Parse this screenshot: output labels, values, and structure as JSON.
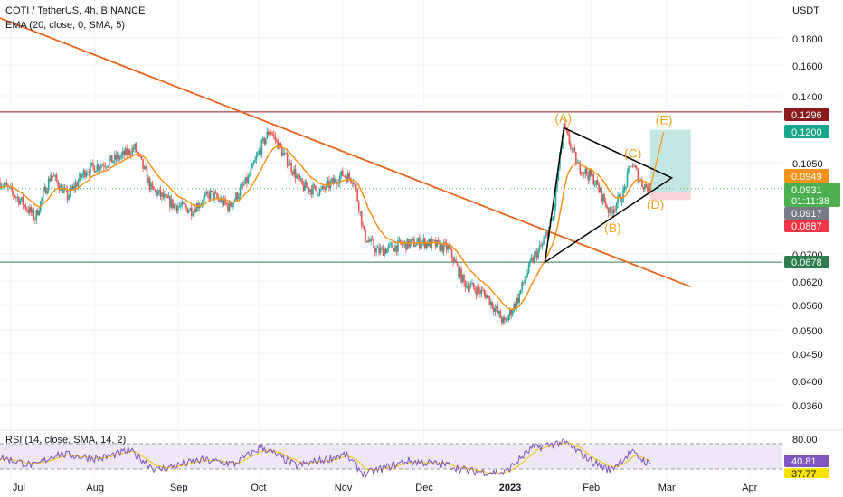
{
  "header": {
    "symbol_line": "COTI / TetherUS, 4h, BINANCE",
    "ema_line": "EMA (20, close, 0, SMA, 5)",
    "rsi_line": "RSI (14, close, SMA, 14, 2)"
  },
  "price_axis": {
    "unit": "USDT",
    "ticks": [
      "0.1800",
      "0.1600",
      "0.1400",
      "0.1050",
      "0.0700",
      "0.0620",
      "0.0560",
      "0.0500",
      "0.0450",
      "0.0400",
      "0.0360"
    ]
  },
  "price_tags": [
    {
      "label": "0.1296",
      "color": "#8b1a1a"
    },
    {
      "label": "0.1200",
      "color": "#17a589"
    },
    {
      "label": "0.0949",
      "color": "#f7931a"
    },
    {
      "label": "0.0931",
      "sublabel": "01:11:38",
      "color": "#4caf50"
    },
    {
      "label": "0.0917",
      "color": "#787b86"
    },
    {
      "label": "0.0887",
      "color": "#f23645"
    },
    {
      "label": "0.0678",
      "color": "#2e7d4f"
    }
  ],
  "rsi_axis": {
    "ticks": [
      "80.00"
    ],
    "tags": [
      {
        "label": "40.81",
        "color": "#7e57c2"
      },
      {
        "label": "37.77",
        "color": "#f5e400"
      }
    ]
  },
  "time_axis": {
    "labels": [
      "Jul",
      "Aug",
      "Sep",
      "Oct",
      "Nov",
      "Dec",
      "2023",
      "Feb",
      "Mar",
      "Apr"
    ]
  },
  "waves": [
    "(A)",
    "(B)",
    "(C)",
    "(D)",
    "(E)"
  ],
  "colors": {
    "resistance_line": "#8b1a1a",
    "support_line": "#2e7d4f",
    "trendline": "#e8651b",
    "ema": "#f7931a",
    "triangle": "#000000",
    "target_zone": "#b2dfdb",
    "stop_zone": "#f8c8cc",
    "rsi_line": "#7e57c2",
    "rsi_band": "#ede7f6",
    "bull": "#26a69a",
    "bear": "#ef5350"
  },
  "chart_data": {
    "type": "candlestick",
    "scale": "log",
    "title": "COTI / TetherUS, 4h, BINANCE",
    "ylabel": "USDT",
    "ylim": [
      0.033,
      0.21
    ],
    "x_range": [
      "2022-06-27",
      "2023-04-13"
    ],
    "price_anchors": [
      {
        "date": "2022-06-27",
        "value": 0.096
      },
      {
        "date": "2022-07-05",
        "value": 0.088
      },
      {
        "date": "2022-07-10",
        "value": 0.082
      },
      {
        "date": "2022-07-16",
        "value": 0.099
      },
      {
        "date": "2022-07-22",
        "value": 0.09
      },
      {
        "date": "2022-07-29",
        "value": 0.101
      },
      {
        "date": "2022-08-05",
        "value": 0.104
      },
      {
        "date": "2022-08-11",
        "value": 0.107
      },
      {
        "date": "2022-08-16",
        "value": 0.111
      },
      {
        "date": "2022-08-22",
        "value": 0.093
      },
      {
        "date": "2022-08-30",
        "value": 0.087
      },
      {
        "date": "2022-09-06",
        "value": 0.085
      },
      {
        "date": "2022-09-13",
        "value": 0.091
      },
      {
        "date": "2022-09-20",
        "value": 0.086
      },
      {
        "date": "2022-09-27",
        "value": 0.097
      },
      {
        "date": "2022-10-02",
        "value": 0.112
      },
      {
        "date": "2022-10-05",
        "value": 0.12
      },
      {
        "date": "2022-10-10",
        "value": 0.108
      },
      {
        "date": "2022-10-17",
        "value": 0.094
      },
      {
        "date": "2022-10-24",
        "value": 0.092
      },
      {
        "date": "2022-11-01",
        "value": 0.099
      },
      {
        "date": "2022-11-05",
        "value": 0.097
      },
      {
        "date": "2022-11-09",
        "value": 0.076
      },
      {
        "date": "2022-11-14",
        "value": 0.071
      },
      {
        "date": "2022-11-22",
        "value": 0.073
      },
      {
        "date": "2022-12-01",
        "value": 0.074
      },
      {
        "date": "2022-12-10",
        "value": 0.072
      },
      {
        "date": "2022-12-16",
        "value": 0.062
      },
      {
        "date": "2022-12-24",
        "value": 0.059
      },
      {
        "date": "2022-12-31",
        "value": 0.052
      },
      {
        "date": "2023-01-05",
        "value": 0.058
      },
      {
        "date": "2023-01-10",
        "value": 0.068
      },
      {
        "date": "2023-01-14",
        "value": 0.073
      },
      {
        "date": "2023-01-18",
        "value": 0.082
      },
      {
        "date": "2023-01-22",
        "value": 0.121
      },
      {
        "date": "2023-01-27",
        "value": 0.103
      },
      {
        "date": "2023-02-02",
        "value": 0.097
      },
      {
        "date": "2023-02-08",
        "value": 0.084
      },
      {
        "date": "2023-02-13",
        "value": 0.091
      },
      {
        "date": "2023-02-16",
        "value": 0.104
      },
      {
        "date": "2023-02-20",
        "value": 0.095
      },
      {
        "date": "2023-02-23",
        "value": 0.093
      }
    ],
    "horizontal_levels": [
      {
        "value": 0.1296,
        "color": "#8b1a1a"
      },
      {
        "value": 0.0678,
        "color": "#2e7d4f"
      }
    ],
    "trendline": {
      "start": {
        "date": "2022-06-25",
        "value": 0.196
      },
      "end": {
        "date": "2023-03-10",
        "value": 0.061
      }
    },
    "triangle": [
      {
        "date": "2023-01-15",
        "value": 0.0678
      },
      {
        "date": "2023-01-22",
        "value": 0.121
      },
      {
        "date": "2023-03-03",
        "value": 0.0975
      }
    ],
    "wave_labels": [
      {
        "label": "(A)",
        "date": "2023-01-22",
        "value": 0.121
      },
      {
        "label": "(B)",
        "date": "2023-02-08",
        "value": 0.084
      },
      {
        "label": "(C)",
        "date": "2023-02-16",
        "value": 0.104
      },
      {
        "label": "(D)",
        "date": "2023-02-23",
        "value": 0.093
      },
      {
        "label": "(E)",
        "date": "2023-02-27",
        "value": 0.12
      }
    ],
    "position_zone": {
      "from_date": "2023-02-23",
      "to_date": "2023-03-10",
      "entry": 0.0917,
      "target": 0.12,
      "stop": 0.0887
    },
    "rsi": {
      "ylim": [
        20,
        90
      ],
      "upper_band": 80,
      "lower_band": 20,
      "last": 40.81,
      "signal_last": 37.77,
      "anchors": [
        {
          "date": "2022-06-27",
          "value": 55
        },
        {
          "date": "2022-07-10",
          "value": 38
        },
        {
          "date": "2022-07-18",
          "value": 62
        },
        {
          "date": "2022-08-03",
          "value": 52
        },
        {
          "date": "2022-08-14",
          "value": 68
        },
        {
          "date": "2022-08-24",
          "value": 30
        },
        {
          "date": "2022-09-10",
          "value": 50
        },
        {
          "date": "2022-09-22",
          "value": 42
        },
        {
          "date": "2022-10-02",
          "value": 75
        },
        {
          "date": "2022-10-15",
          "value": 38
        },
        {
          "date": "2022-11-02",
          "value": 60
        },
        {
          "date": "2022-11-09",
          "value": 22
        },
        {
          "date": "2022-11-25",
          "value": 48
        },
        {
          "date": "2022-12-10",
          "value": 40
        },
        {
          "date": "2022-12-18",
          "value": 28
        },
        {
          "date": "2022-12-31",
          "value": 25
        },
        {
          "date": "2023-01-10",
          "value": 72
        },
        {
          "date": "2023-01-22",
          "value": 85
        },
        {
          "date": "2023-02-02",
          "value": 45
        },
        {
          "date": "2023-02-08",
          "value": 30
        },
        {
          "date": "2023-02-16",
          "value": 65
        },
        {
          "date": "2023-02-23",
          "value": 40
        }
      ]
    },
    "x_ticks": [
      {
        "label": "Jul",
        "date": "2022-07-01"
      },
      {
        "label": "Aug",
        "date": "2022-08-01"
      },
      {
        "label": "Sep",
        "date": "2022-09-01"
      },
      {
        "label": "Oct",
        "date": "2022-10-01"
      },
      {
        "label": "Nov",
        "date": "2022-11-01"
      },
      {
        "label": "Dec",
        "date": "2022-12-01"
      },
      {
        "label": "2023",
        "date": "2023-01-01"
      },
      {
        "label": "Feb",
        "date": "2023-02-01"
      },
      {
        "label": "Mar",
        "date": "2023-03-01"
      },
      {
        "label": "Apr",
        "date": "2023-04-01"
      }
    ]
  }
}
